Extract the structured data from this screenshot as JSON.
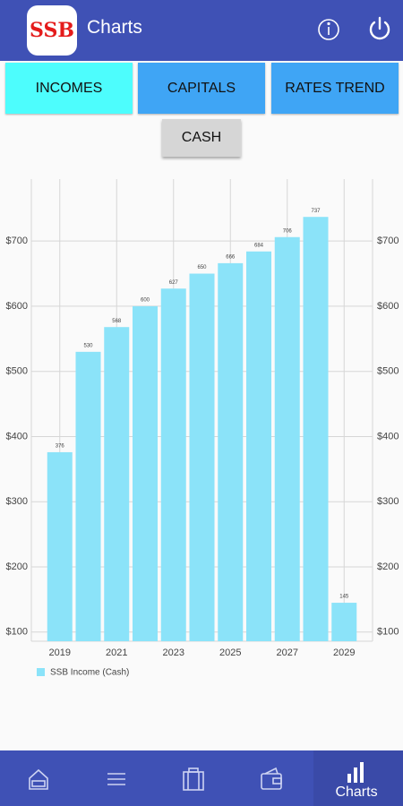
{
  "app_bar": {
    "logo": "SSB",
    "title": "Charts"
  },
  "tabs": [
    "INCOMES",
    "CAPITALS",
    "RATES TREND"
  ],
  "cash_button": "CASH",
  "chart_data": {
    "type": "bar",
    "x": [
      2019,
      2020,
      2021,
      2022,
      2023,
      2024,
      2025,
      2026,
      2027,
      2028,
      2029
    ],
    "series": [
      {
        "name": "SSB Income (Cash)",
        "color": "#8be3f9",
        "values": [
          376,
          530,
          568,
          600,
          627,
          650,
          666,
          684,
          706,
          737,
          145
        ]
      }
    ],
    "xlim": [
      2018,
      2030
    ],
    "xticks": [
      2019,
      2021,
      2023,
      2025,
      2027,
      2029
    ],
    "ylim": [
      86,
      795
    ],
    "yticks": [
      {
        "value": 100,
        "label": "$100"
      },
      {
        "value": 200,
        "label": "$200"
      },
      {
        "value": 300,
        "label": "$300"
      },
      {
        "value": 400,
        "label": "$400"
      },
      {
        "value": 500,
        "label": "$500"
      },
      {
        "value": 600,
        "label": "$600"
      },
      {
        "value": 700,
        "label": "$700"
      }
    ],
    "grid": true
  },
  "bottom_nav": {
    "active_label": "Charts"
  }
}
